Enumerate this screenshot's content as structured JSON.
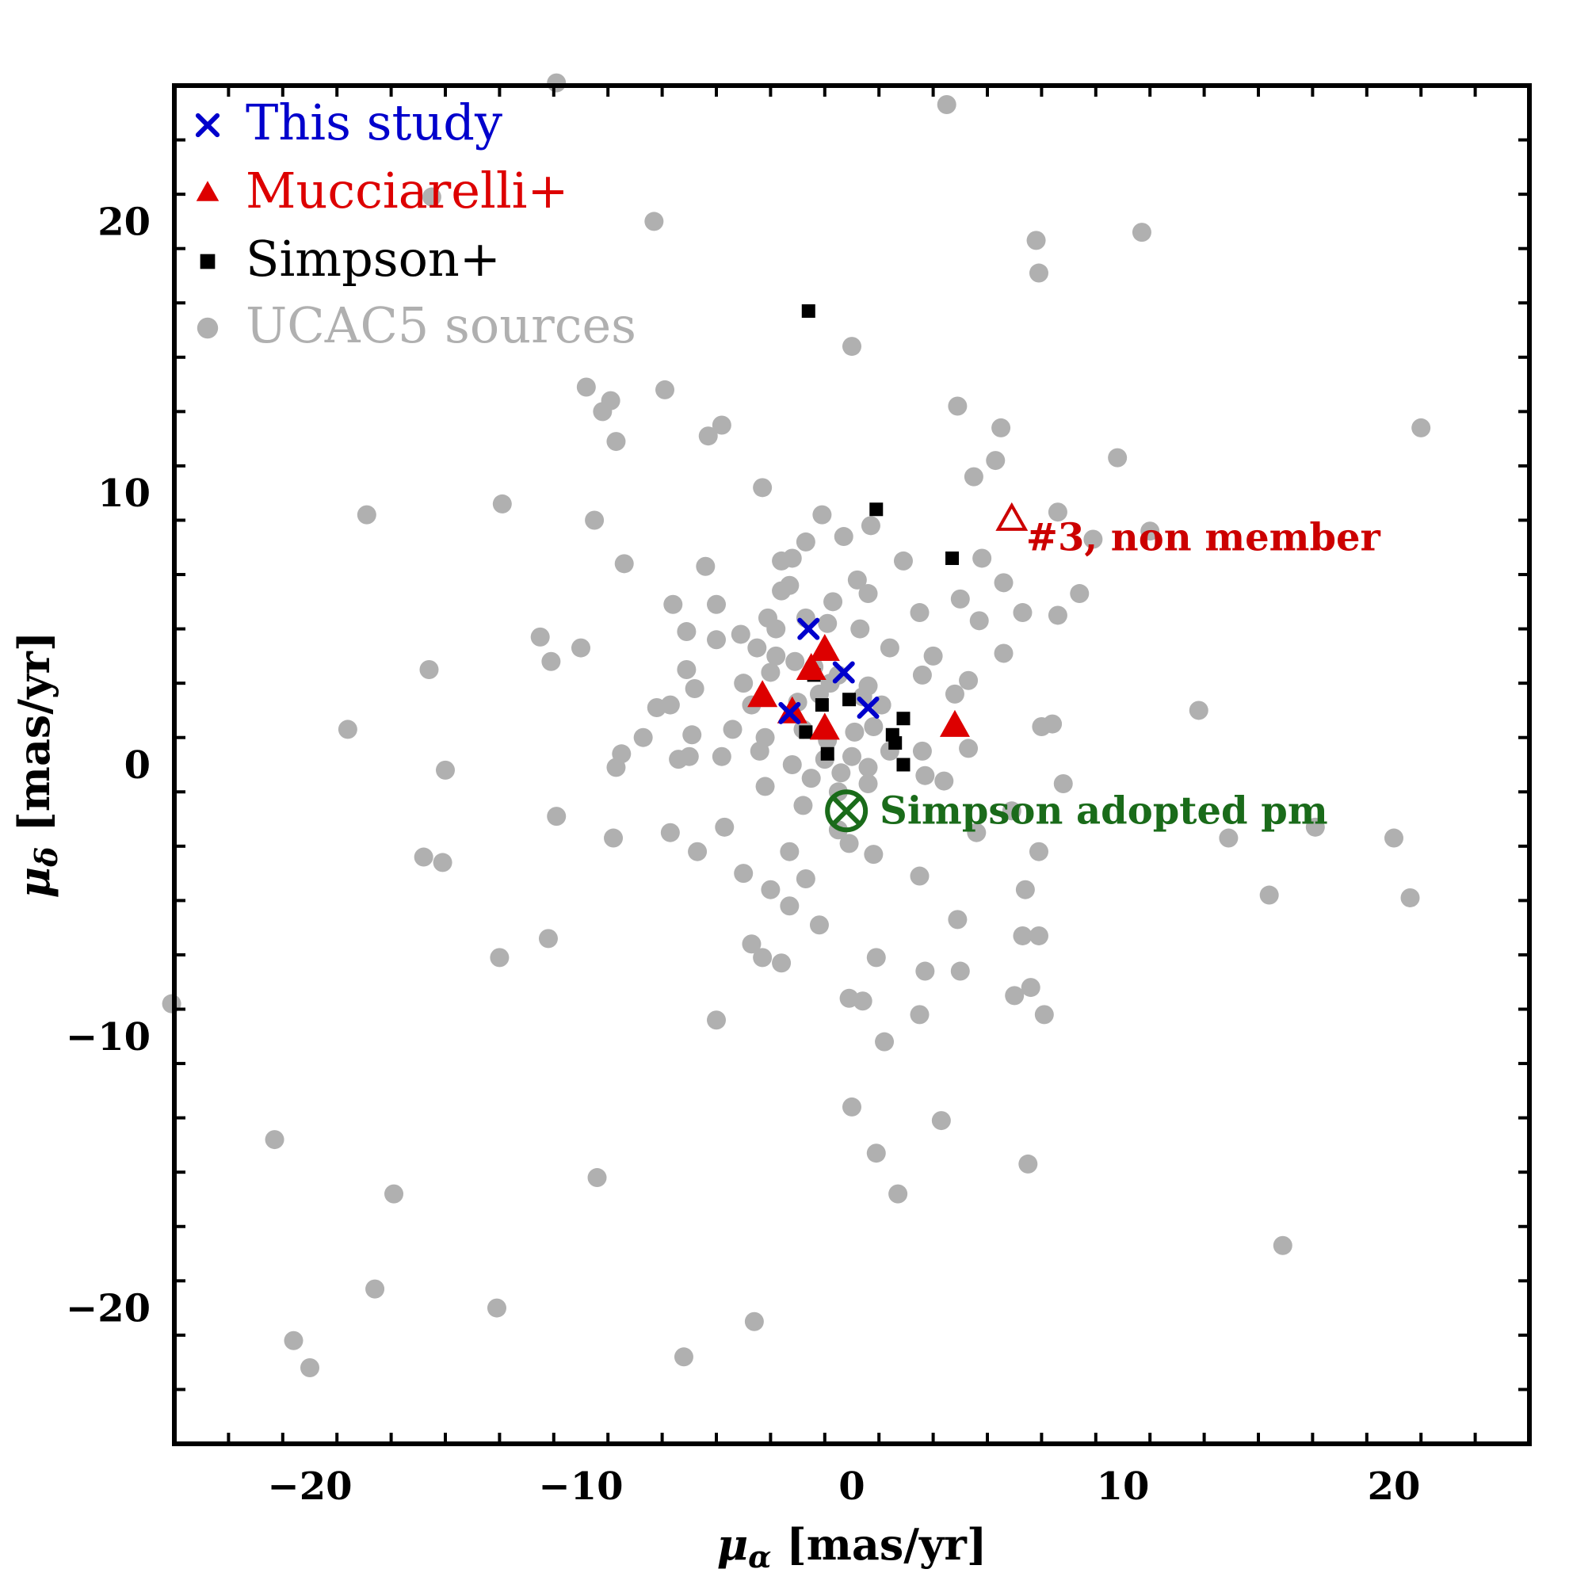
{
  "chart_data": {
    "type": "scatter",
    "xlabel": "μ_α [mas/yr]",
    "ylabel": "μ_δ [mas/yr]",
    "xlim": [
      -25,
      25
    ],
    "ylim": [
      -25,
      25
    ],
    "xticks": [
      -20,
      -10,
      0,
      10,
      20
    ],
    "yticks": [
      -20,
      -10,
      0,
      10,
      20
    ],
    "tick_labels_x": [
      "−20",
      "−10",
      "0",
      "10",
      "20"
    ],
    "tick_labels_y": [
      "−20",
      "−10",
      "0",
      "10",
      "20"
    ],
    "grid": false,
    "legend_placement": "top-left",
    "legend": [
      {
        "label": "This study",
        "marker": "x",
        "color": "#0000cc"
      },
      {
        "label": "Mucciarelli+",
        "marker": "triangle",
        "color": "#dd0000"
      },
      {
        "label": "Simpson+",
        "marker": "square",
        "color": "#000000"
      },
      {
        "label": "UCAC5 sources",
        "marker": "circle",
        "color": "#b0b0b0"
      }
    ],
    "series": [
      {
        "name": "UCAC5 sources",
        "marker": "circle",
        "color": "#b0b0b0",
        "points": [
          [
            -10.9,
            25.1
          ],
          [
            3.5,
            24.3
          ],
          [
            -15.5,
            20.9
          ],
          [
            -7.3,
            20.0
          ],
          [
            6.8,
            19.3
          ],
          [
            10.7,
            19.6
          ],
          [
            6.9,
            18.1
          ],
          [
            0.0,
            15.4
          ],
          [
            -9.8,
            13.9
          ],
          [
            -9.2,
            13.0
          ],
          [
            -8.9,
            13.4
          ],
          [
            -6.9,
            13.8
          ],
          [
            -8.7,
            11.9
          ],
          [
            -5.3,
            12.1
          ],
          [
            -4.8,
            12.5
          ],
          [
            3.9,
            13.2
          ],
          [
            5.5,
            12.4
          ],
          [
            21.0,
            12.4
          ],
          [
            5.3,
            11.2
          ],
          [
            9.8,
            11.3
          ],
          [
            4.5,
            10.6
          ],
          [
            -3.3,
            10.2
          ],
          [
            -17.9,
            9.2
          ],
          [
            -12.9,
            9.6
          ],
          [
            -9.5,
            9.0
          ],
          [
            -1.1,
            9.2
          ],
          [
            0.7,
            8.8
          ],
          [
            7.6,
            9.3
          ],
          [
            8.9,
            8.3
          ],
          [
            11.0,
            8.6
          ],
          [
            -8.4,
            7.4
          ],
          [
            -2.6,
            7.5
          ],
          [
            -2.2,
            7.6
          ],
          [
            -2.3,
            6.6
          ],
          [
            -5.4,
            7.3
          ],
          [
            -1.7,
            8.2
          ],
          [
            -0.3,
            8.4
          ],
          [
            1.9,
            7.5
          ],
          [
            4.8,
            7.6
          ],
          [
            -6.6,
            5.9
          ],
          [
            -5.0,
            5.9
          ],
          [
            -2.6,
            6.4
          ],
          [
            0.2,
            6.8
          ],
          [
            0.6,
            6.3
          ],
          [
            -0.7,
            6.0
          ],
          [
            4.0,
            6.1
          ],
          [
            5.6,
            6.7
          ],
          [
            6.3,
            5.6
          ],
          [
            8.4,
            6.3
          ],
          [
            7.6,
            5.5
          ],
          [
            -11.5,
            4.7
          ],
          [
            -10.0,
            4.3
          ],
          [
            -11.1,
            3.8
          ],
          [
            -6.1,
            4.9
          ],
          [
            -5.0,
            4.6
          ],
          [
            -4.1,
            4.8
          ],
          [
            -3.1,
            5.4
          ],
          [
            -2.8,
            5.0
          ],
          [
            -1.7,
            5.4
          ],
          [
            -0.9,
            5.2
          ],
          [
            0.3,
            5.0
          ],
          [
            2.5,
            5.6
          ],
          [
            4.7,
            5.3
          ],
          [
            5.6,
            4.1
          ],
          [
            -15.6,
            3.5
          ],
          [
            -3.5,
            4.3
          ],
          [
            -2.8,
            4.0
          ],
          [
            -2.1,
            3.8
          ],
          [
            -1.4,
            3.6
          ],
          [
            -0.5,
            3.3
          ],
          [
            1.4,
            4.3
          ],
          [
            3.0,
            4.0
          ],
          [
            -6.1,
            3.5
          ],
          [
            -5.8,
            2.8
          ],
          [
            -4.0,
            3.0
          ],
          [
            -3.0,
            3.4
          ],
          [
            -0.8,
            3.0
          ],
          [
            0.6,
            2.9
          ],
          [
            2.6,
            3.3
          ],
          [
            4.3,
            3.1
          ],
          [
            -7.2,
            2.1
          ],
          [
            -6.7,
            2.2
          ],
          [
            -3.7,
            2.2
          ],
          [
            -2.0,
            2.3
          ],
          [
            -1.2,
            2.6
          ],
          [
            0.4,
            2.5
          ],
          [
            1.1,
            2.2
          ],
          [
            3.8,
            2.6
          ],
          [
            -18.6,
            1.3
          ],
          [
            -7.7,
            1.0
          ],
          [
            -5.9,
            1.1
          ],
          [
            -4.4,
            1.3
          ],
          [
            -3.2,
            1.0
          ],
          [
            -1.8,
            1.3
          ],
          [
            -0.9,
            0.9
          ],
          [
            0.1,
            1.2
          ],
          [
            0.8,
            1.4
          ],
          [
            2.6,
            0.5
          ],
          [
            4.3,
            0.6
          ],
          [
            7.0,
            1.4
          ],
          [
            7.4,
            1.5
          ],
          [
            12.8,
            2.0
          ],
          [
            -8.5,
            0.4
          ],
          [
            -6.4,
            0.2
          ],
          [
            -6.0,
            0.3
          ],
          [
            -4.8,
            0.3
          ],
          [
            -3.4,
            0.5
          ],
          [
            -2.2,
            0.0
          ],
          [
            -1.0,
            0.2
          ],
          [
            0.0,
            0.3
          ],
          [
            1.4,
            0.5
          ],
          [
            -15.0,
            -0.2
          ],
          [
            -8.7,
            -0.1
          ],
          [
            -3.2,
            -0.8
          ],
          [
            -1.5,
            -0.5
          ],
          [
            -0.4,
            -0.3
          ],
          [
            0.6,
            -0.1
          ],
          [
            2.7,
            -0.4
          ],
          [
            3.4,
            -0.6
          ],
          [
            7.8,
            -0.7
          ],
          [
            -10.9,
            -1.9
          ],
          [
            -8.8,
            -2.7
          ],
          [
            -6.7,
            -2.5
          ],
          [
            -4.7,
            -2.3
          ],
          [
            -1.8,
            -1.5
          ],
          [
            -0.5,
            -1.0
          ],
          [
            0.6,
            -0.7
          ],
          [
            -0.5,
            -2.4
          ],
          [
            4.6,
            -2.5
          ],
          [
            5.9,
            -1.7
          ],
          [
            13.9,
            -2.7
          ],
          [
            17.1,
            -2.3
          ],
          [
            20.0,
            -2.7
          ],
          [
            -15.8,
            -3.4
          ],
          [
            -15.1,
            -3.6
          ],
          [
            -5.7,
            -3.2
          ],
          [
            -2.3,
            -3.2
          ],
          [
            -0.1,
            -2.9
          ],
          [
            0.8,
            -3.3
          ],
          [
            6.9,
            -3.2
          ],
          [
            -4.0,
            -4.0
          ],
          [
            -1.7,
            -4.2
          ],
          [
            -3.0,
            -4.6
          ],
          [
            -2.3,
            -5.2
          ],
          [
            2.5,
            -4.1
          ],
          [
            6.4,
            -4.6
          ],
          [
            15.4,
            -4.8
          ],
          [
            20.6,
            -4.9
          ],
          [
            -11.2,
            -6.4
          ],
          [
            -3.7,
            -6.6
          ],
          [
            -3.3,
            -7.1
          ],
          [
            -2.6,
            -7.3
          ],
          [
            -1.2,
            -5.9
          ],
          [
            3.9,
            -5.7
          ],
          [
            6.3,
            -6.3
          ],
          [
            6.9,
            -6.3
          ],
          [
            -13.0,
            -7.1
          ],
          [
            0.9,
            -7.1
          ],
          [
            2.7,
            -7.6
          ],
          [
            4.0,
            -7.6
          ],
          [
            6.6,
            -8.2
          ],
          [
            6.0,
            -8.5
          ],
          [
            -25.1,
            -8.8
          ],
          [
            -0.1,
            -8.6
          ],
          [
            0.4,
            -8.7
          ],
          [
            2.5,
            -9.2
          ],
          [
            7.1,
            -9.2
          ],
          [
            -5.0,
            -9.4
          ],
          [
            1.2,
            -10.2
          ],
          [
            0.0,
            -12.6
          ],
          [
            3.3,
            -13.1
          ],
          [
            -21.3,
            -13.8
          ],
          [
            0.9,
            -14.3
          ],
          [
            6.5,
            -14.7
          ],
          [
            -9.4,
            -15.2
          ],
          [
            1.7,
            -15.8
          ],
          [
            -16.9,
            -15.8
          ],
          [
            15.9,
            -17.7
          ],
          [
            -17.6,
            -19.3
          ],
          [
            -13.1,
            -20.0
          ],
          [
            -3.6,
            -20.5
          ],
          [
            -20.6,
            -21.2
          ],
          [
            -20.0,
            -22.2
          ],
          [
            -6.2,
            -21.8
          ]
        ]
      },
      {
        "name": "Simpson+",
        "marker": "square",
        "color": "#000000",
        "points": [
          [
            -1.6,
            16.7
          ],
          [
            0.9,
            9.4
          ],
          [
            3.7,
            7.6
          ],
          [
            -1.4,
            3.3
          ],
          [
            -1.1,
            2.2
          ],
          [
            -0.1,
            2.4
          ],
          [
            -1.7,
            1.2
          ],
          [
            -0.9,
            0.4
          ],
          [
            1.5,
            1.1
          ],
          [
            1.6,
            0.8
          ],
          [
            1.9,
            1.7
          ],
          [
            1.9,
            0.0
          ],
          [
            3.8,
            1.3
          ]
        ]
      },
      {
        "name": "Mucciarelli+",
        "marker": "triangle",
        "color": "#dd0000",
        "points": [
          [
            -1.0,
            4.2
          ],
          [
            -3.3,
            2.5
          ],
          [
            -2.2,
            1.9
          ],
          [
            -1.0,
            1.3
          ],
          [
            3.8,
            1.4
          ],
          [
            -1.5,
            3.5
          ]
        ]
      },
      {
        "name": "This study",
        "marker": "x",
        "color": "#0000cc",
        "points": [
          [
            -1.6,
            5.0
          ],
          [
            -0.3,
            3.4
          ],
          [
            -2.3,
            1.9
          ],
          [
            0.6,
            2.1
          ]
        ]
      }
    ],
    "annotations": [
      {
        "text": "#3, non member",
        "point": [
          5.9,
          9.0
        ],
        "marker": "open-triangle",
        "color": "#cc0000"
      },
      {
        "text": "Simpson adopted pm",
        "point": [
          -0.2,
          -1.7
        ],
        "marker": "circled-x",
        "color": "#1a6b1a"
      }
    ],
    "colors": {
      "frame": "#000000",
      "background": "#ffffff"
    }
  }
}
